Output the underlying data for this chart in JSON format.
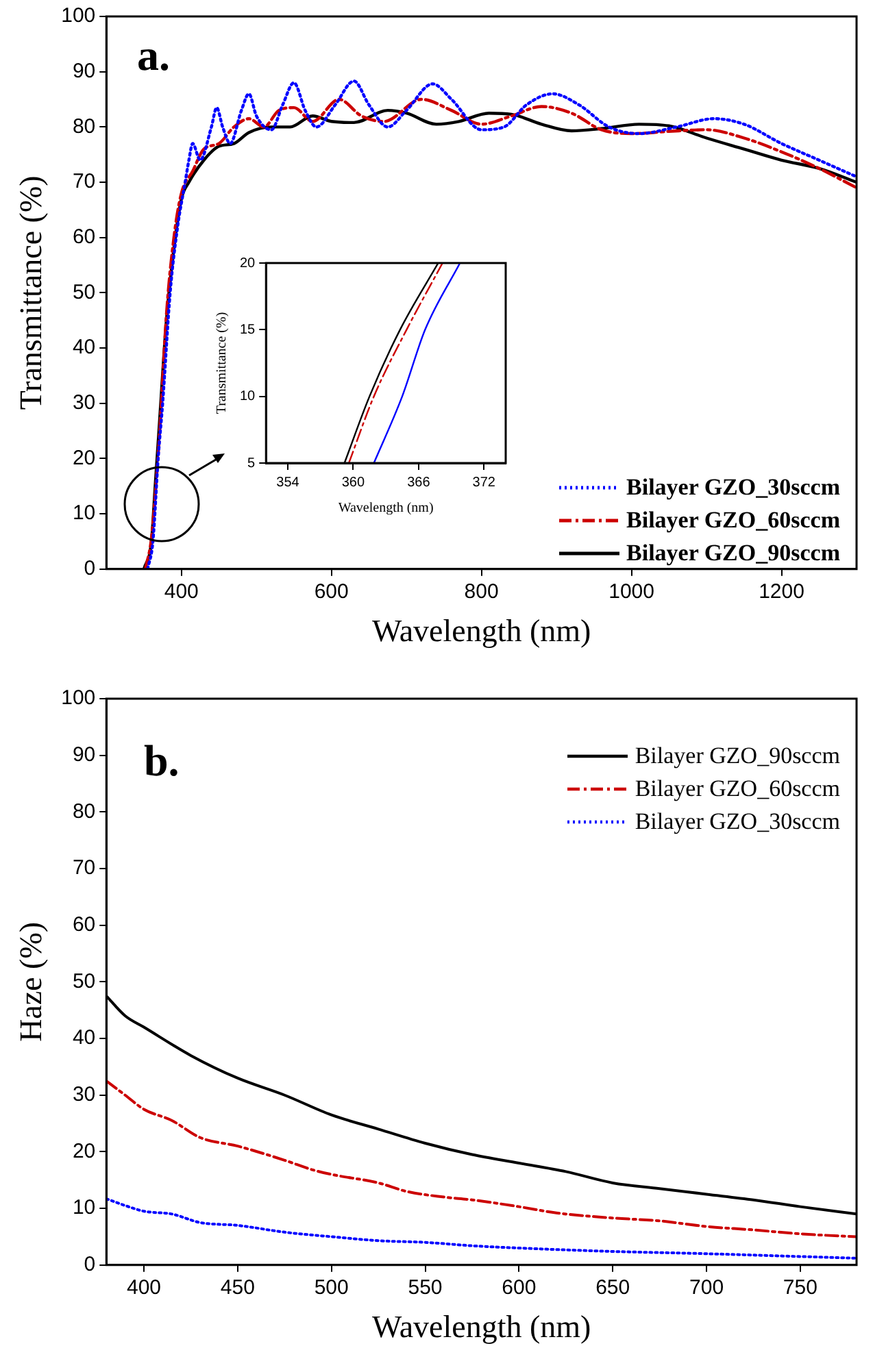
{
  "chart_data": [
    {
      "type": "line",
      "xlabel": "Wavelength (nm)",
      "ylabel": "Transmittance (%)",
      "xlim": [
        300,
        1300
      ],
      "xticks": [
        400,
        600,
        800,
        1000,
        1200
      ],
      "ylim": [
        0,
        100
      ],
      "yticks": [
        0,
        10,
        20,
        30,
        40,
        50,
        60,
        70,
        80,
        90,
        100
      ],
      "grid": false,
      "legend": "bottom right",
      "marker": "none",
      "annotations": [
        "a."
      ],
      "series": [
        {
          "name": "Bilayer GZO_30sccm",
          "color": "#0000ff",
          "line_style": "dotted",
          "x": [
            355,
            362,
            369,
            375,
            385,
            395,
            405,
            410,
            415,
            425,
            440,
            447,
            455,
            465,
            480,
            490,
            500,
            520,
            535,
            550,
            565,
            580,
            605,
            630,
            650,
            675,
            700,
            735,
            760,
            800,
            830,
            860,
            895,
            930,
            970,
            1010,
            1060,
            1110,
            1150,
            1200,
            1250,
            1300
          ],
          "values": [
            0,
            5,
            20,
            30,
            50,
            62,
            70,
            74,
            77,
            74,
            80,
            83.5,
            80,
            77,
            83,
            86,
            82,
            79.5,
            84,
            88,
            83,
            80,
            84,
            88.3,
            84,
            80,
            83,
            87.8,
            85,
            79.5,
            80,
            84,
            86,
            84,
            80,
            78.8,
            80,
            81.5,
            80.5,
            77,
            74,
            71
          ]
        },
        {
          "name": "Bilayer GZO_60sccm",
          "color": "#cc0000",
          "line_style": "dashed",
          "x": [
            352,
            360,
            366,
            372,
            380,
            390,
            400,
            415,
            430,
            450,
            470,
            490,
            510,
            530,
            550,
            575,
            610,
            640,
            670,
            720,
            760,
            800,
            840,
            880,
            920,
            960,
            1000,
            1050,
            1100,
            1150,
            1200,
            1250,
            1300
          ],
          "values": [
            0,
            5.5,
            15,
            27,
            46,
            60,
            68,
            72,
            76,
            77,
            80,
            81.5,
            80,
            83,
            83.5,
            81,
            85,
            82,
            81,
            85,
            83,
            80.5,
            82,
            83.7,
            82.5,
            79.5,
            78.8,
            79.2,
            79.5,
            78,
            75.5,
            72.5,
            69
          ]
        },
        {
          "name": "Bilayer GZO_90sccm",
          "color": "#000000",
          "line_style": "solid",
          "x": [
            350,
            360,
            365,
            370,
            380,
            390,
            400,
            410,
            430,
            450,
            470,
            490,
            520,
            545,
            575,
            600,
            630,
            675,
            700,
            740,
            770,
            810,
            840,
            880,
            920,
            960,
            1010,
            1050,
            1100,
            1150,
            1200,
            1250,
            1300
          ],
          "values": [
            0,
            5,
            15,
            25,
            45,
            58,
            67,
            70,
            74,
            76.5,
            77,
            79,
            80,
            80,
            82,
            81,
            80.8,
            83,
            82.5,
            80.5,
            81,
            82.5,
            82.3,
            80.5,
            79.3,
            79.7,
            80.5,
            80.2,
            78,
            76,
            74,
            72.5,
            70
          ]
        }
      ]
    },
    {
      "type": "line",
      "xlabel": "Wavelength (nm)",
      "ylabel": "Transmittance (%)",
      "xlim": [
        352,
        374
      ],
      "xticks": [
        354,
        360,
        366,
        372
      ],
      "ylim": [
        5,
        20
      ],
      "yticks": [
        5,
        10,
        15,
        20
      ],
      "grid": false,
      "marker": "none",
      "series": [
        {
          "color": "#0000ff",
          "line_style": "solid",
          "x": [
            361.9,
            364.5,
            366.6,
            369.8
          ],
          "values": [
            5,
            10,
            15,
            20
          ]
        },
        {
          "color": "#cc0000",
          "line_style": "dashed",
          "x": [
            359.6,
            361.9,
            364.9,
            368.2
          ],
          "values": [
            5,
            10,
            15,
            20
          ]
        },
        {
          "color": "#000000",
          "line_style": "solid",
          "x": [
            359.2,
            361.5,
            364.3,
            367.8
          ],
          "values": [
            5,
            10,
            15,
            20
          ]
        }
      ]
    },
    {
      "type": "line",
      "xlabel": "Wavelength (nm)",
      "ylabel": "Haze (%)",
      "xlim": [
        380,
        780
      ],
      "xticks": [
        400,
        450,
        500,
        550,
        600,
        650,
        700,
        750
      ],
      "ylim": [
        0,
        100
      ],
      "yticks": [
        0,
        10,
        20,
        30,
        40,
        50,
        60,
        70,
        80,
        90,
        100
      ],
      "grid": false,
      "legend": "top right",
      "marker": "none",
      "annotations": [
        "b."
      ],
      "series": [
        {
          "name": "Bilayer GZO_90sccm",
          "color": "#000000",
          "line_style": "solid",
          "x": [
            380,
            390,
            400,
            425,
            450,
            475,
            500,
            525,
            550,
            575,
            600,
            625,
            650,
            675,
            700,
            725,
            750,
            780
          ],
          "values": [
            47.5,
            44,
            42,
            37,
            33,
            30,
            26.5,
            24,
            21.5,
            19.5,
            18,
            16.5,
            14.5,
            13.5,
            12.5,
            11.5,
            10.3,
            9
          ]
        },
        {
          "name": "Bilayer GZO_60sccm",
          "color": "#cc0000",
          "line_style": "dashed",
          "x": [
            380,
            390,
            400,
            415,
            430,
            450,
            475,
            490,
            500,
            525,
            540,
            560,
            575,
            600,
            620,
            650,
            675,
            700,
            725,
            750,
            780
          ],
          "values": [
            32.5,
            30,
            27.5,
            25.5,
            22.5,
            21,
            18.5,
            16.8,
            16,
            14.5,
            13,
            12,
            11.5,
            10.3,
            9.2,
            8.3,
            7.8,
            6.8,
            6.2,
            5.5,
            5
          ]
        },
        {
          "name": "Bilayer GZO_30sccm",
          "color": "#0000ff",
          "line_style": "dotted",
          "x": [
            380,
            390,
            400,
            415,
            430,
            450,
            475,
            500,
            525,
            550,
            575,
            600,
            650,
            700,
            750,
            780
          ],
          "values": [
            11.7,
            10.5,
            9.5,
            9,
            7.5,
            7,
            5.8,
            5,
            4.3,
            4,
            3.4,
            3,
            2.4,
            2,
            1.5,
            1.2
          ]
        }
      ]
    }
  ]
}
